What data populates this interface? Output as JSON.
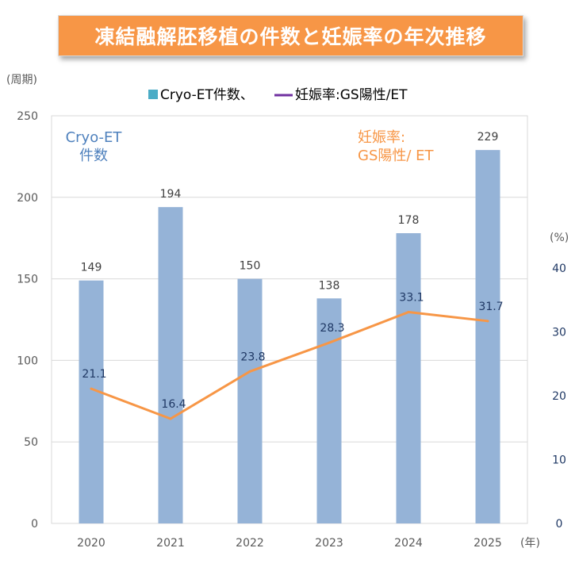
{
  "title": "凍結融解胚移植の件数と妊娠率の年次推移",
  "colors": {
    "title_bg": "#f79646",
    "bar": "#95b3d7",
    "line": "#f79646",
    "left_axis_text": "#595959",
    "right_axis_text": "#1f3864",
    "bar_label": "#404040",
    "line_label": "#1f3864",
    "annotation_left": "#4f81bd",
    "annotation_right": "#f79646",
    "legend_square": "#4bacc6",
    "legend_line": "#7030a0"
  },
  "chart_data": {
    "type": "bar",
    "categories": [
      "2020",
      "2021",
      "2022",
      "2023",
      "2024",
      "2025"
    ],
    "series": [
      {
        "name": "Cryo-ET件数",
        "type": "bar",
        "axis": "left",
        "values": [
          149,
          194,
          150,
          138,
          178,
          229
        ]
      },
      {
        "name": "妊娠率:GS陽性/ET",
        "type": "line",
        "axis": "right",
        "values": [
          21.1,
          16.4,
          23.8,
          28.3,
          33.1,
          31.7
        ]
      }
    ],
    "left_axis": {
      "unit_label": "(周期)",
      "ylim": [
        0,
        250
      ],
      "ticks": [
        "0",
        "50",
        "100",
        "150",
        "200",
        "250"
      ]
    },
    "right_axis": {
      "unit_label": "(%)",
      "ylim": [
        0,
        40
      ],
      "ticks": [
        "0",
        "10",
        "20",
        "30",
        "40"
      ]
    },
    "x_unit_label": "(年)",
    "legend": {
      "placement": "top",
      "bar_text": "Cryo-ET件数、",
      "line_text": "妊娠率:GS陽性/ET"
    },
    "annotations": {
      "left_line1": "Cryo-ET",
      "left_line2": "件数",
      "right_line1": "妊娠率:",
      "right_line2": "GS陽性/ ET"
    },
    "grid": true
  }
}
